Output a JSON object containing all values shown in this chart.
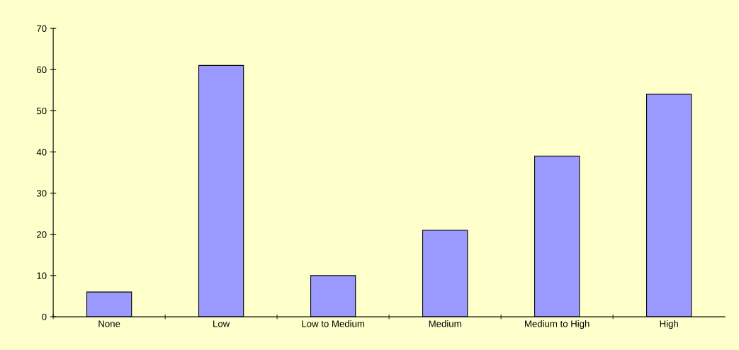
{
  "chart_data": {
    "type": "bar",
    "categories": [
      "None",
      "Low",
      "Low to Medium",
      "Medium",
      "Medium to High",
      "High"
    ],
    "values": [
      6,
      61,
      10,
      21,
      39,
      54
    ],
    "color": "#9999ff",
    "ylim": [
      0,
      70
    ],
    "yticks": [
      0,
      10,
      20,
      30,
      40,
      50,
      60,
      70
    ],
    "grid": false
  }
}
